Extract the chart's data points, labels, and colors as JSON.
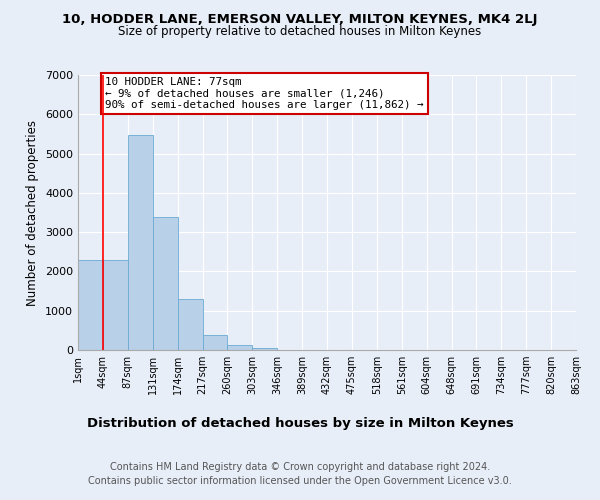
{
  "title1": "10, HODDER LANE, EMERSON VALLEY, MILTON KEYNES, MK4 2LJ",
  "title2": "Size of property relative to detached houses in Milton Keynes",
  "xlabel": "Distribution of detached houses by size in Milton Keynes",
  "ylabel": "Number of detached properties",
  "bar_values": [
    2280,
    2290,
    5480,
    3390,
    1290,
    380,
    130,
    50,
    10,
    0,
    0,
    0,
    0,
    0,
    0,
    0,
    0,
    0,
    0,
    0
  ],
  "bin_labels": [
    "1sqm",
    "44sqm",
    "87sqm",
    "131sqm",
    "174sqm",
    "217sqm",
    "260sqm",
    "303sqm",
    "346sqm",
    "389sqm",
    "432sqm",
    "475sqm",
    "518sqm",
    "561sqm",
    "604sqm",
    "648sqm",
    "691sqm",
    "734sqm",
    "777sqm",
    "820sqm",
    "863sqm"
  ],
  "bar_color": "#b8d0e8",
  "bar_edge_color": "#6aaad4",
  "redline_x": 1,
  "annotation_text": "10 HODDER LANE: 77sqm\n← 9% of detached houses are smaller (1,246)\n90% of semi-detached houses are larger (11,862) →",
  "annotation_box_color": "#ffffff",
  "annotation_box_edge": "#cc0000",
  "ylim": [
    0,
    7000
  ],
  "yticks": [
    0,
    1000,
    2000,
    3000,
    4000,
    5000,
    6000,
    7000
  ],
  "bg_color": "#e8eef8",
  "plot_bg_color": "#e8eef8",
  "footer_text": "Contains HM Land Registry data © Crown copyright and database right 2024.\nContains public sector information licensed under the Open Government Licence v3.0.",
  "title1_fontsize": 9.5,
  "title2_fontsize": 8.5,
  "xlabel_fontsize": 9.5,
  "ylabel_fontsize": 8.5,
  "footer_fontsize": 7
}
